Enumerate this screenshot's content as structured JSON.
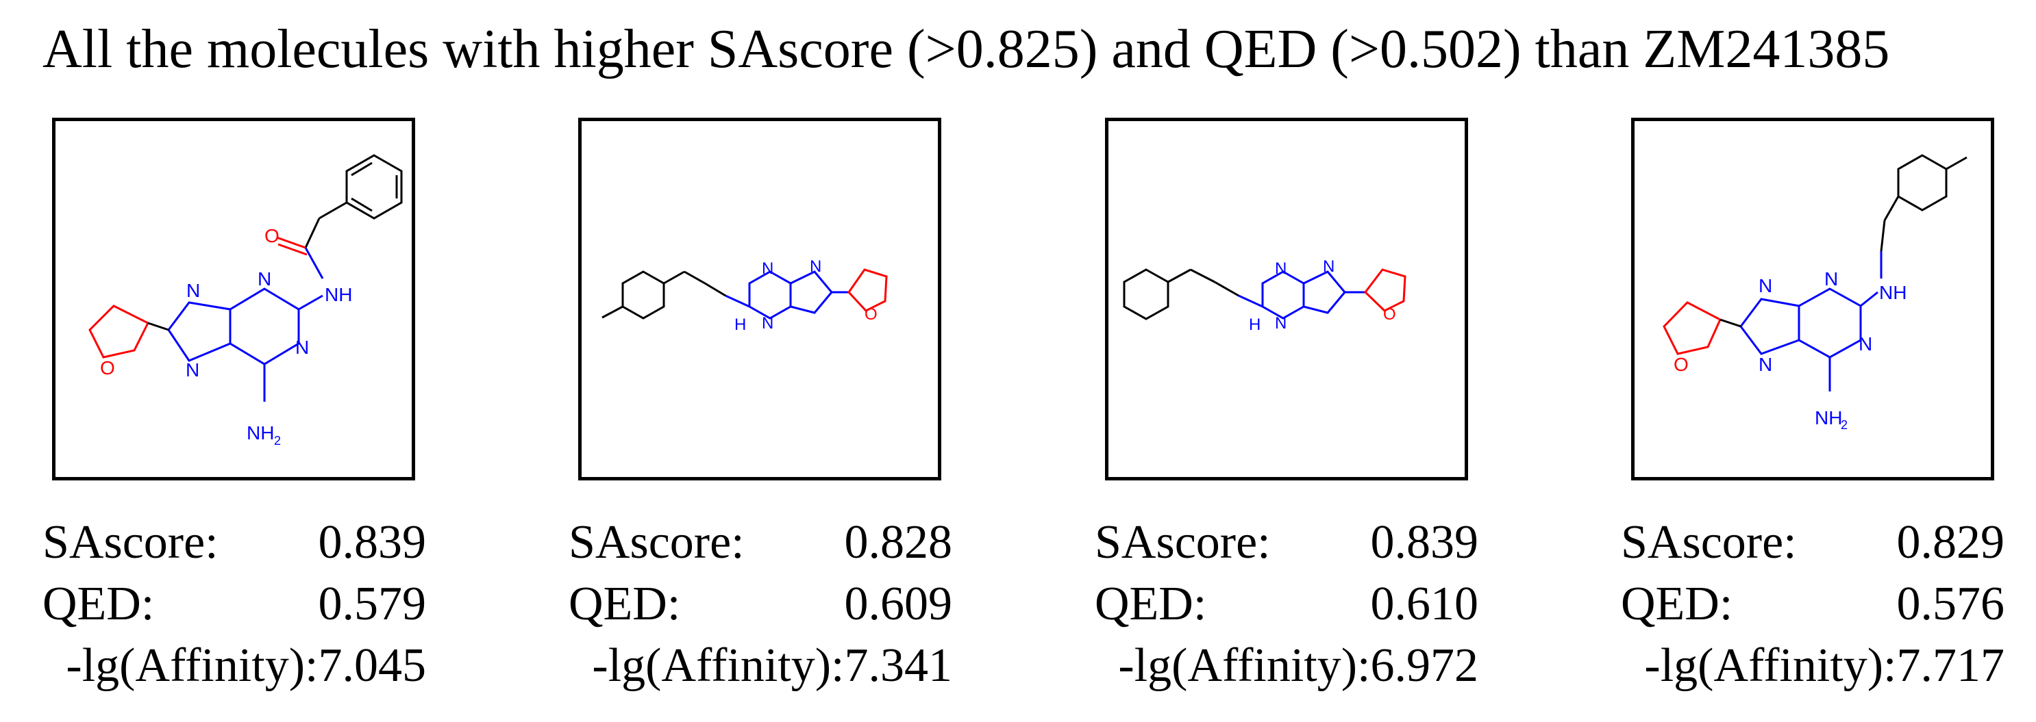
{
  "title": "All the molecules with higher SAscore (>0.825) and QED (>0.502) than ZM241385",
  "colors": {
    "nitrogen": "#0000ff",
    "oxygen": "#ff0000",
    "carbon": "#000000"
  },
  "labels": {
    "sascore": "SAscore:",
    "qed": "QED:",
    "affinity": "-lg(Affinity):"
  },
  "atom_labels": {
    "nh": "NH",
    "h": "H",
    "nh2_n": "NH",
    "nh2_sub": "2",
    "n": "N",
    "o": "O"
  },
  "molecules": [
    {
      "sascore": "0.839",
      "qed": "0.579",
      "affinity": "7.045"
    },
    {
      "sascore": "0.828",
      "qed": "0.609",
      "affinity": "7.341"
    },
    {
      "sascore": "0.839",
      "qed": "0.610",
      "affinity": "6.972"
    },
    {
      "sascore": "0.829",
      "qed": "0.576",
      "affinity": "7.717"
    }
  ]
}
